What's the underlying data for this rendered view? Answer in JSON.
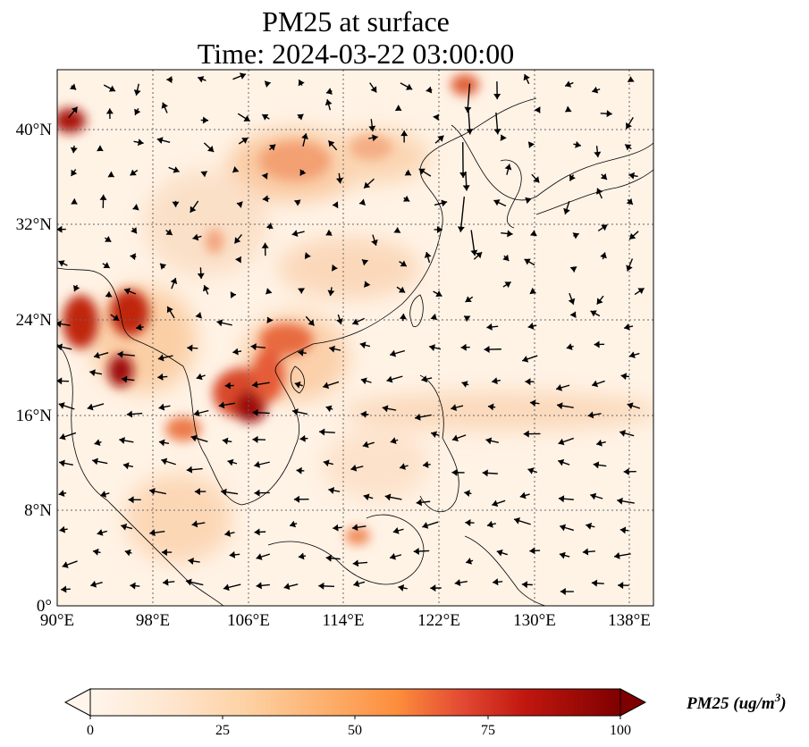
{
  "title": {
    "line1": "PM25 at surface",
    "line2": "Time: 2024-03-22 03:00:00"
  },
  "map": {
    "lon_range": [
      90,
      140
    ],
    "lat_range": [
      0,
      45
    ],
    "grid": true,
    "x_ticks": [
      "90°E",
      "98°E",
      "106°E",
      "114°E",
      "122°E",
      "130°E",
      "138°E"
    ],
    "y_ticks": [
      "0°",
      "8°N",
      "16°N",
      "24°N",
      "32°N",
      "40°N"
    ],
    "field": "PM25 concentration",
    "overlay": "wind vectors",
    "colormap": [
      "#fff5eb",
      "#fee6ce",
      "#fdd0a2",
      "#fdae6b",
      "#fd8d3c",
      "#f16913",
      "#d94801",
      "#a63603",
      "#7f0000"
    ]
  },
  "colorbar": {
    "ticks": [
      "0",
      "25",
      "50",
      "75",
      "100"
    ],
    "range": [
      0,
      100
    ],
    "label": "PM25 (ug/m",
    "label_sup": "3",
    "label_end": ")",
    "extend": "both"
  }
}
